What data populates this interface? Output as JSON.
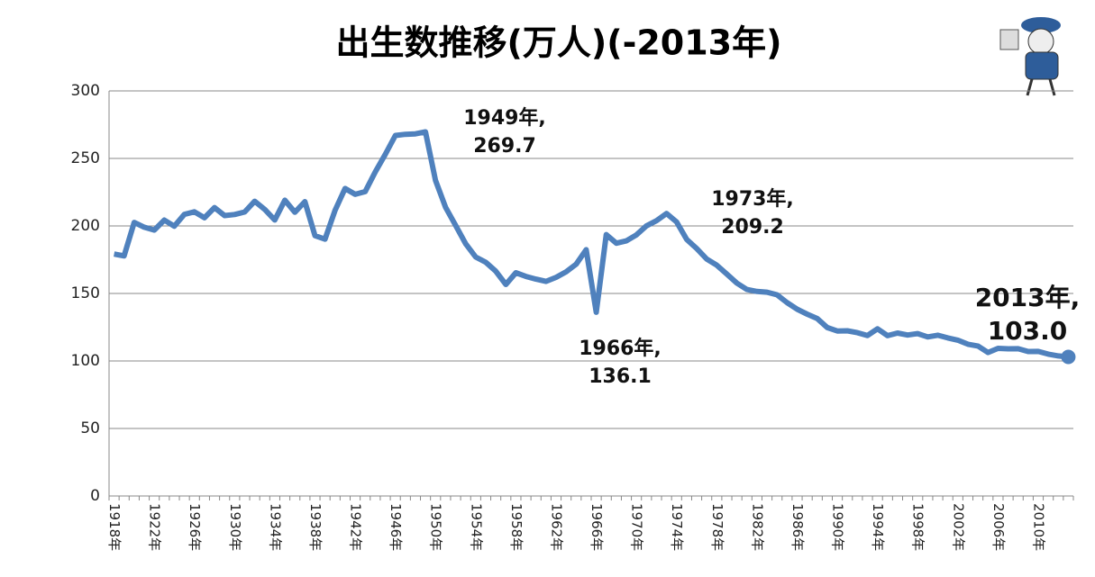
{
  "chart_data": {
    "type": "line",
    "title": "出生数推移(万人)(-2013年)",
    "categories": [
      "1918年",
      null,
      null,
      null,
      "1922年",
      null,
      null,
      null,
      "1926年",
      null,
      null,
      null,
      "1930年",
      null,
      null,
      null,
      "1934年",
      null,
      null,
      null,
      "1938年",
      null,
      null,
      null,
      "1942年",
      null,
      null,
      null,
      "1946年",
      null,
      null,
      null,
      "1950年",
      null,
      null,
      null,
      "1954年",
      null,
      null,
      null,
      "1958年",
      null,
      null,
      null,
      "1962年",
      null,
      null,
      null,
      "1966年",
      null,
      null,
      null,
      "1970年",
      null,
      null,
      null,
      "1974年",
      null,
      null,
      null,
      "1978年",
      null,
      null,
      null,
      "1982年",
      null,
      null,
      null,
      "1986年",
      null,
      null,
      null,
      "1990年",
      null,
      null,
      null,
      "1994年",
      null,
      null,
      null,
      "1998年",
      null,
      null,
      null,
      "2002年",
      null,
      null,
      null,
      "2006年",
      null,
      null,
      null,
      "2010年",
      null,
      null,
      null
    ],
    "series": [
      {
        "name": "出生数",
        "color": "#4f81bd",
        "values": [
          179.2,
          177.8,
          202.6,
          199.1,
          196.9,
          204.3,
          199.8,
          208.6,
          210.5,
          206.1,
          213.6,
          207.7,
          208.5,
          210.3,
          218.3,
          212.2,
          204.4,
          219.1,
          210.1,
          218.0,
          192.8,
          190.2,
          211.6,
          227.7,
          223.4,
          225.4,
          240.0,
          253.0,
          267.0,
          267.9,
          268.2,
          269.7,
          233.8,
          213.8,
          200.5,
          186.8,
          177.0,
          173.1,
          166.5,
          156.7,
          165.3,
          162.6,
          160.6,
          158.9,
          161.9,
          166.0,
          171.7,
          182.4,
          136.1,
          193.6,
          187.2,
          188.9,
          193.4,
          200.1,
          203.9,
          209.2,
          203.0,
          190.1,
          183.3,
          175.5,
          170.9,
          164.3,
          157.7,
          152.9,
          151.5,
          150.9,
          149.0,
          143.2,
          138.3,
          134.7,
          131.4,
          124.7,
          122.2,
          122.3,
          120.9,
          118.8,
          123.8,
          118.7,
          120.7,
          119.2,
          120.3,
          117.8,
          119.1,
          117.1,
          115.4,
          112.4,
          111.1,
          106.3,
          109.3,
          109.0,
          109.1,
          107.0,
          107.1,
          105.1,
          103.7,
          103.0
        ]
      }
    ],
    "ylim": [
      0,
      300
    ],
    "yticks": [
      0,
      50,
      100,
      150,
      200,
      250,
      300
    ],
    "grid": true,
    "annotations": [
      {
        "lines": [
          "1949年,",
          "269.7"
        ]
      },
      {
        "lines": [
          "1966年,",
          "136.1"
        ]
      },
      {
        "lines": [
          "1973年,",
          "209.2"
        ]
      },
      {
        "lines": [
          "2013年,",
          "103.0"
        ]
      }
    ]
  }
}
